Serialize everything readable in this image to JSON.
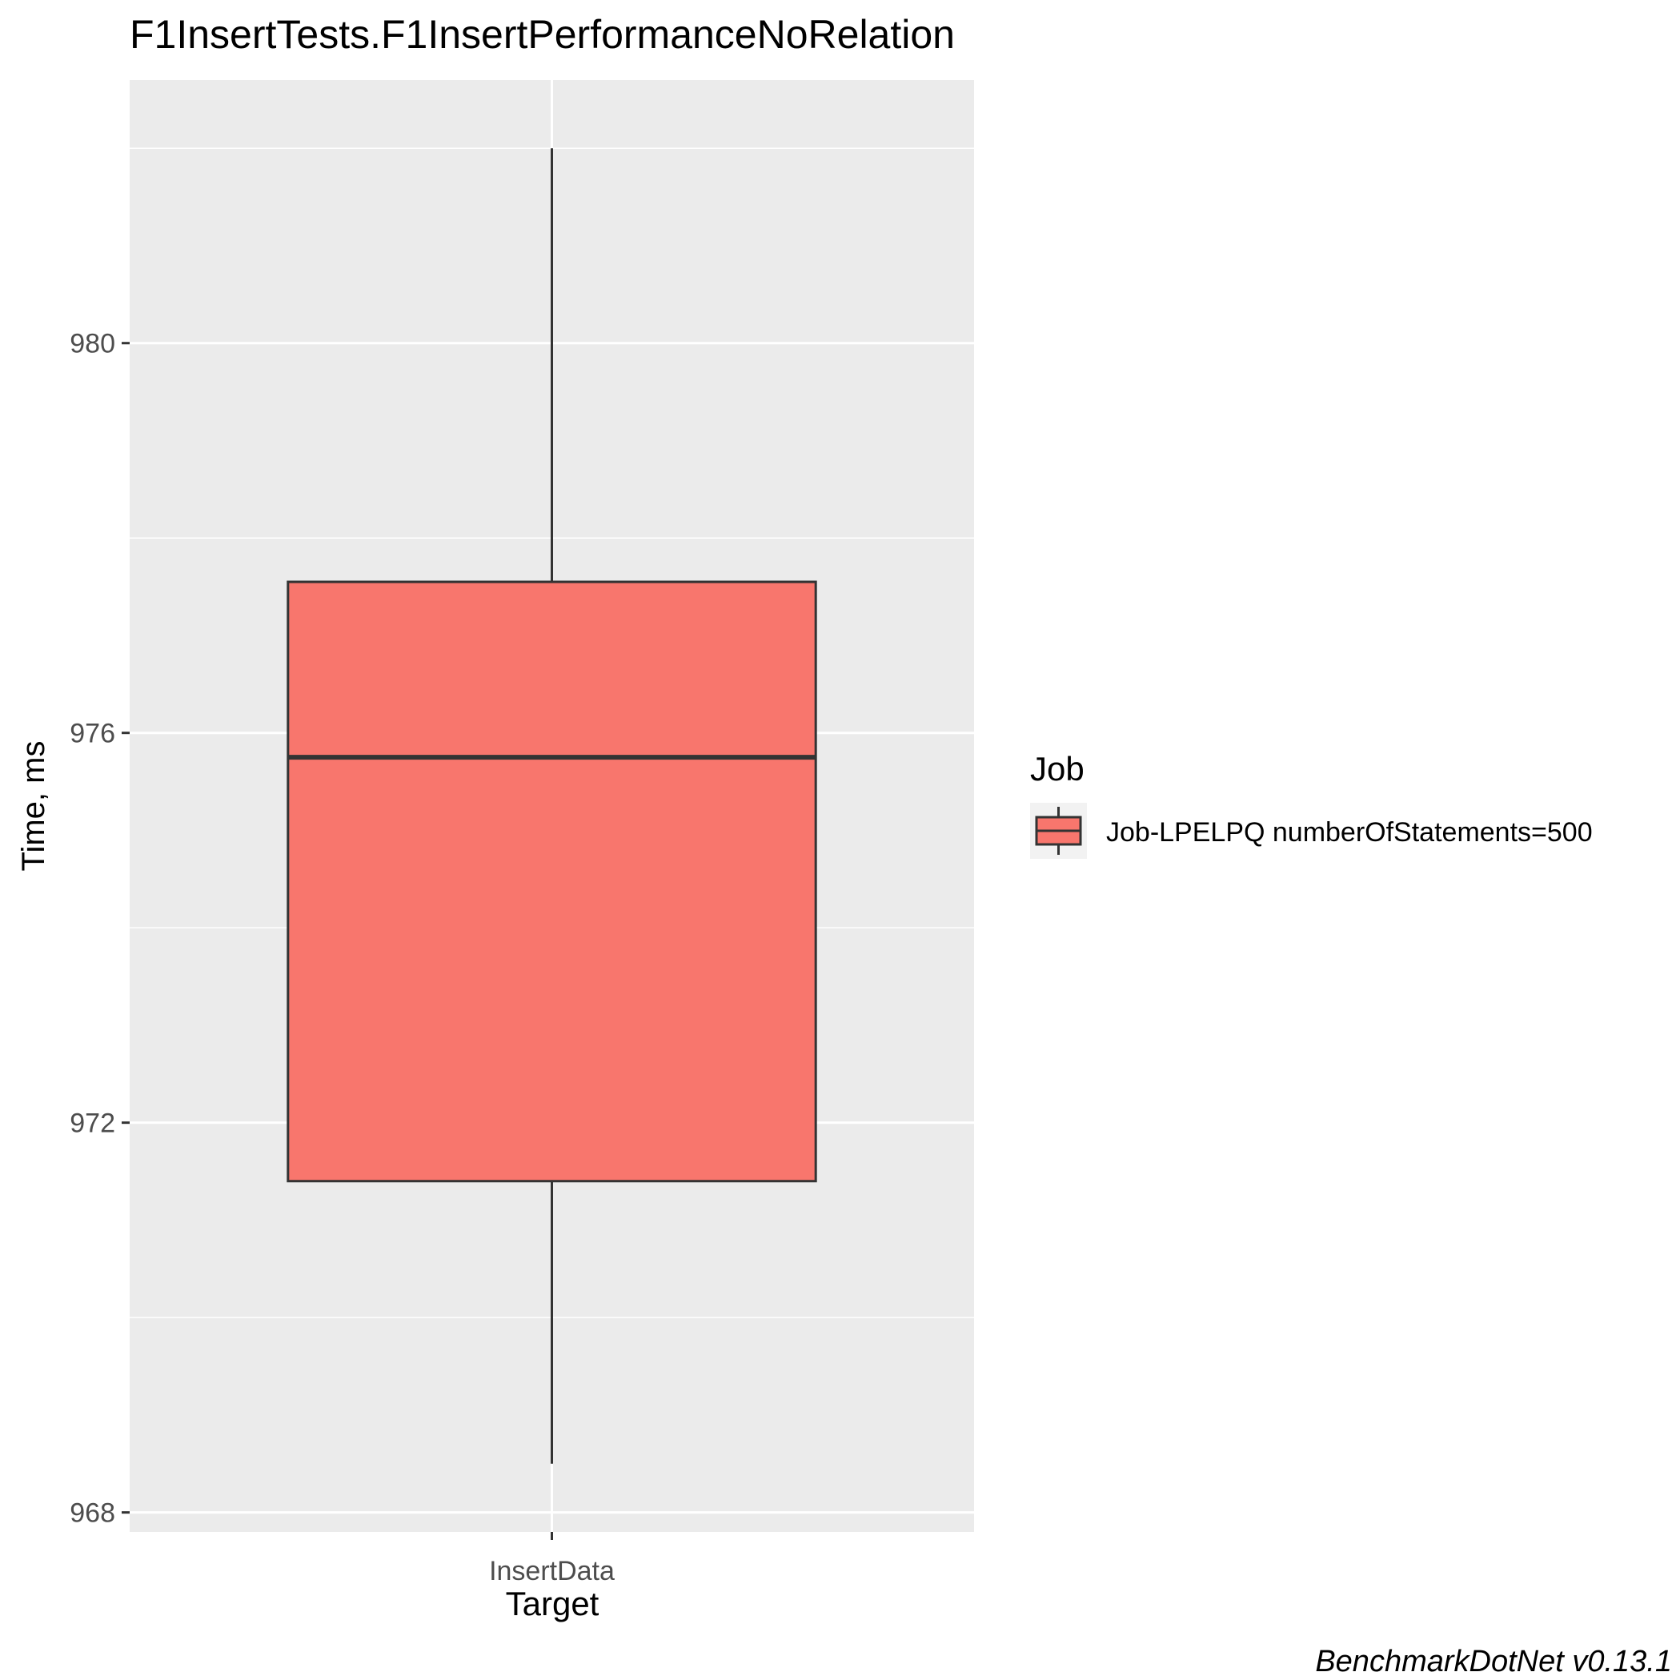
{
  "chart_data": {
    "type": "boxplot",
    "title": "F1InsertTests.F1InsertPerformanceNoRelation",
    "xlabel": "Target",
    "ylabel": "Time, ms",
    "categories": [
      "InsertData"
    ],
    "ylim": [
      967.8,
      982.7
    ],
    "yticks": [
      968,
      972,
      976,
      980
    ],
    "grid": true,
    "legend": {
      "title": "Job",
      "placement": "right",
      "entries": [
        "Job-LPELPQ numberOfStatements=500"
      ]
    },
    "series": [
      {
        "name": "Job-LPELPQ numberOfStatements=500",
        "color": "#F8766D",
        "boxes": [
          {
            "category": "InsertData",
            "min": 968.5,
            "q1": 971.4,
            "median": 975.75,
            "q3": 977.55,
            "max": 982.0
          }
        ]
      }
    ],
    "caption": "BenchmarkDotNet v0.13.1"
  },
  "colors": {
    "panel_background": "#EBEBEB",
    "grid": "#FFFFFF",
    "box_fill": "#F8766D",
    "box_line": "#333333",
    "tick_text": "#4D4D4D"
  }
}
